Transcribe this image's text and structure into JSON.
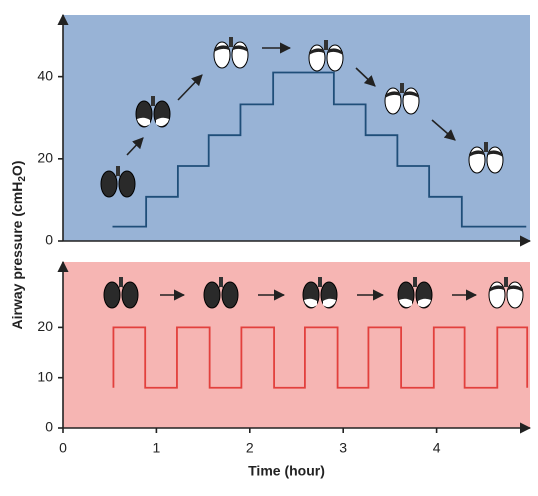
{
  "chart_data": [
    {
      "type": "line",
      "background": "#98b3d6",
      "xlim": [
        0,
        5
      ],
      "ylim": [
        0,
        55
      ],
      "yticks": [
        0,
        20,
        40
      ],
      "series": [
        {
          "color": "#1f4e79",
          "x": [
            0.53,
            0.89,
            0.89,
            1.23,
            1.23,
            1.56,
            1.56,
            1.9,
            1.9,
            2.25,
            2.25,
            2.9,
            2.9,
            3.24,
            3.24,
            3.58,
            3.58,
            3.92,
            3.92,
            4.27,
            4.27,
            4.96
          ],
          "values": [
            3.5,
            3.5,
            10.75,
            10.75,
            18.25,
            18.25,
            25.75,
            25.75,
            33.25,
            33.25,
            41,
            41,
            33.25,
            33.25,
            25.75,
            25.75,
            18.25,
            18.25,
            10.75,
            10.75,
            3.5,
            3.5
          ]
        }
      ]
    },
    {
      "type": "line",
      "background": "#f6b5b3",
      "xlim": [
        0,
        5
      ],
      "ylim": [
        0,
        33
      ],
      "yticks": [
        0,
        10,
        20
      ],
      "xticks": [
        0,
        1,
        2,
        3,
        4
      ],
      "xlabel": "Time (hour)",
      "series": [
        {
          "color": "#e2403d",
          "x": [
            0.54,
            0.54,
            0.88,
            0.88,
            1.22,
            1.22,
            1.57,
            1.57,
            1.91,
            1.91,
            2.26,
            2.26,
            2.59,
            2.59,
            2.94,
            2.94,
            3.27,
            3.27,
            3.62,
            3.62,
            3.97,
            3.97,
            4.3,
            4.3,
            4.65,
            4.65,
            4.97,
            4.97
          ],
          "values": [
            8,
            20,
            20,
            8,
            8,
            20,
            20,
            8,
            8,
            20,
            20,
            8,
            8,
            20,
            20,
            8,
            8,
            20,
            20,
            8,
            8,
            20,
            20,
            8,
            8,
            20,
            20,
            8
          ]
        }
      ]
    }
  ],
  "y_label": [
    "Airway pressure (cmH",
    "2",
    "O)"
  ]
}
